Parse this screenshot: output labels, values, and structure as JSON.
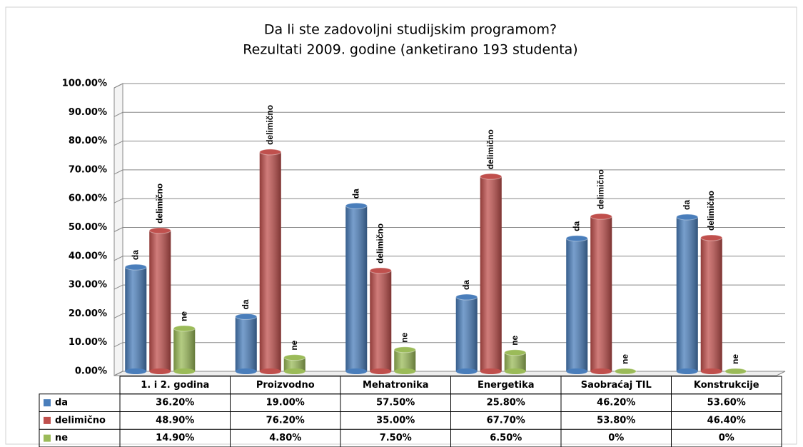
{
  "chart_data": {
    "type": "bar",
    "title": "Da li ste zadovoljni studijskim programom?",
    "subtitle": "Rezultati 2009. godine (anketirano  193 studenta)",
    "categories": [
      "1. i 2. godina",
      "Proizvodno",
      "Mehatronika",
      "Energetika",
      "Saobraćaj TIL",
      "Konstrukcije"
    ],
    "series": [
      {
        "name": "da",
        "color": "#4a7ebb",
        "values": [
          36.2,
          19.0,
          57.5,
          25.8,
          46.2,
          53.6
        ],
        "value_labels": [
          "36.20%",
          "19.00%",
          "57.50%",
          "25.80%",
          "46.20%",
          "53.60%"
        ]
      },
      {
        "name": "delimično",
        "color": "#c0504d",
        "values": [
          48.9,
          76.2,
          35.0,
          67.7,
          53.8,
          46.4
        ],
        "value_labels": [
          "48.90%",
          "76.20%",
          "35.00%",
          "67.70%",
          "53.80%",
          "46.40%"
        ]
      },
      {
        "name": "ne",
        "color": "#9bbb59",
        "values": [
          14.9,
          4.8,
          7.5,
          6.5,
          0,
          0
        ],
        "value_labels": [
          "14.90%",
          "4.80%",
          "7.50%",
          "6.50%",
          "0%",
          "0%"
        ]
      }
    ],
    "ylim": [
      0,
      100
    ],
    "yticks": [
      {
        "value": 0,
        "label": "0.00%"
      },
      {
        "value": 10,
        "label": "10.00%"
      },
      {
        "value": 20,
        "label": "20.00%"
      },
      {
        "value": 30,
        "label": "30.00%"
      },
      {
        "value": 40,
        "label": "40.00%"
      },
      {
        "value": 50,
        "label": "50.00%"
      },
      {
        "value": 60,
        "label": "60.00%"
      },
      {
        "value": 70,
        "label": "70.00%"
      },
      {
        "value": 80,
        "label": "80.00%"
      },
      {
        "value": 90,
        "label": "90.00%"
      },
      {
        "value": 100,
        "label": "100.00%"
      }
    ],
    "grid": true
  }
}
